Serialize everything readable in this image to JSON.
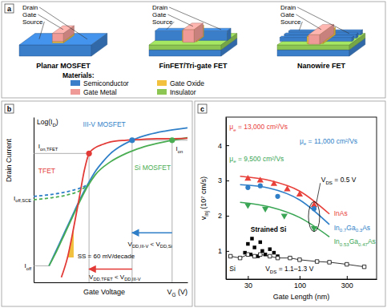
{
  "diagram": {
    "panel_label": "a",
    "devices": [
      {
        "title": "Planar MOSFET",
        "labels": [
          "Drain",
          "Gate",
          "Source"
        ]
      },
      {
        "title": "FinFET/Tri-gate FET",
        "labels": [
          "Drain",
          "Gate",
          "Source"
        ]
      },
      {
        "title": "Nanowire FET",
        "labels": [
          "Drain",
          "Gate",
          "Source"
        ]
      }
    ],
    "materials_title": "Materials:",
    "materials": [
      {
        "name": "Semiconductor",
        "color": "#3a7dc9"
      },
      {
        "name": "Gate Metal",
        "color": "#ef9a96"
      },
      {
        "name": "Gate Oxide",
        "color": "#f2c13d"
      },
      {
        "name": "Insulator",
        "color": "#8dc653"
      }
    ]
  },
  "chart_data": [
    {
      "type": "line",
      "panel_label": "b",
      "x_label": "Gate Voltage",
      "x_unit_label": [
        "V",
        "G",
        " (V)"
      ],
      "y_label": "Drain Current",
      "y_unit_label": [
        "Log(I",
        "D",
        ")"
      ],
      "xlim": [
        0,
        10
      ],
      "ylim": [
        0,
        10
      ],
      "tick_labels": false,
      "series": [
        {
          "label": "III-V MOSFET",
          "color": "#2f7fc8",
          "x": [
            1.0,
            1.5,
            2.0,
            2.5,
            3.0,
            3.5,
            4.0,
            4.5,
            5.0,
            5.5,
            6.4,
            7.5,
            8.5,
            10.0
          ],
          "values": [
            1.0,
            2.0,
            3.0,
            4.0,
            5.0,
            5.9,
            6.7,
            7.3,
            7.8,
            8.15,
            8.6,
            8.95,
            9.15,
            9.35
          ]
        },
        {
          "label": "Si MOSFET",
          "color": "#4aad52",
          "x": [
            1.0,
            1.5,
            2.0,
            2.5,
            3.0,
            3.5,
            4.0,
            5.0,
            6.0,
            7.0,
            8.0,
            9.0,
            10.0
          ],
          "values": [
            1.0,
            1.9,
            2.9,
            3.9,
            4.9,
            5.8,
            6.5,
            7.3,
            7.8,
            8.15,
            8.4,
            8.6,
            8.75
          ]
        },
        {
          "label": "TFET",
          "color": "#e23a36",
          "x": [
            1.8,
            2.2,
            2.6,
            3.0,
            3.3,
            3.6,
            4.0,
            4.5,
            5.0,
            6.0,
            7.0,
            8.0,
            9.0,
            10.0
          ],
          "values": [
            0.3,
            1.5,
            3.3,
            5.3,
            6.8,
            7.8,
            8.15,
            8.35,
            8.5,
            8.6,
            8.65,
            8.7,
            8.7,
            8.72
          ]
        },
        {
          "color": "#2f7fc8",
          "line_style": "dashed",
          "x": [
            0,
            1,
            2,
            3,
            3.5
          ],
          "values": [
            5.2,
            5.3,
            5.45,
            5.7,
            5.9
          ]
        },
        {
          "color": "#4aad52",
          "line_style": "dashed",
          "x": [
            0,
            1,
            2,
            3,
            3.6
          ],
          "values": [
            5.0,
            5.1,
            5.25,
            5.55,
            5.95
          ]
        }
      ],
      "markers": [
        {
          "x": 6.4,
          "y": 8.6,
          "color": "#2f7fc8"
        },
        {
          "x": 9.0,
          "y": 8.6,
          "color": "#4aad52"
        },
        {
          "x": 3.6,
          "y": 7.8,
          "color": "#e23a36"
        }
      ],
      "annotations": [
        [
          "I",
          "on,TFET"
        ],
        [
          "I",
          "off,SCE"
        ],
        [
          "I",
          "off"
        ],
        [
          "I",
          "on"
        ],
        [
          "SS = 60 mV/decade"
        ],
        [
          "V",
          "DD,III-V",
          " < V",
          "DD,Si"
        ],
        [
          "V",
          "DD,TFET",
          " < V",
          "DD,III-V"
        ]
      ]
    },
    {
      "type": "scatter",
      "panel_label": "c",
      "x_label": "Gate Length (nm)",
      "y_label": [
        "v",
        "inj",
        " (10⁷ cm/s)"
      ],
      "log": "x",
      "xlim": [
        18,
        600
      ],
      "xticks": [
        30,
        100,
        300
      ],
      "ylim": [
        0.2,
        4.8
      ],
      "yticks": [
        1,
        2,
        3,
        4
      ],
      "series": [
        {
          "label": "InAs",
          "type": "scatter",
          "marker": "triangle-up",
          "color": "#e8403a",
          "x": [
            30,
            40,
            55,
            75,
            100,
            140
          ],
          "values": [
            3.05,
            3.0,
            2.9,
            2.75,
            2.6,
            2.3
          ]
        },
        {
          "type": "line",
          "color": "#e8403a",
          "x": [
            25,
            50,
            100,
            200
          ],
          "values": [
            3.12,
            3.0,
            2.7,
            2.05
          ]
        },
        {
          "label": [
            "In",
            "0.7",
            "Ga",
            "0.3",
            "As"
          ],
          "type": "scatter",
          "marker": "circle",
          "color": "#2f7fc8",
          "x": [
            30,
            40,
            60,
            140
          ],
          "values": [
            2.8,
            2.85,
            2.55,
            2.2
          ]
        },
        {
          "type": "line",
          "color": "#2f7fc8",
          "x": [
            25,
            50,
            100,
            200
          ],
          "values": [
            2.88,
            2.78,
            2.45,
            1.75
          ]
        },
        {
          "label": [
            "In",
            "0.53",
            "Ga",
            "0.47",
            "As"
          ],
          "type": "scatter",
          "marker": "triangle-down",
          "color": "#3aa655",
          "x": [
            30,
            45,
            70,
            140
          ],
          "values": [
            2.3,
            2.2,
            2.0,
            1.65
          ]
        },
        {
          "type": "line",
          "color": "#3aa655",
          "x": [
            25,
            50,
            100,
            200
          ],
          "values": [
            2.38,
            2.25,
            1.95,
            1.4
          ]
        },
        {
          "label": "Strained Si",
          "type": "scatter",
          "marker": "square",
          "color": "#000000",
          "x": [
            28,
            30,
            32,
            33,
            35,
            38,
            40,
            42,
            45,
            50,
            55,
            60
          ],
          "values": [
            0.95,
            1.2,
            0.9,
            1.35,
            1.1,
            0.85,
            1.25,
            1.0,
            0.9,
            1.05,
            0.95,
            0.85
          ]
        },
        {
          "label": "Si",
          "type": "line",
          "marker": "square-open",
          "color": "#000000",
          "x": [
            20,
            25,
            30,
            35,
            40,
            50,
            60,
            80,
            100,
            150,
            200,
            300,
            450
          ],
          "values": [
            0.85,
            0.8,
            0.9,
            0.85,
            0.9,
            0.85,
            0.8,
            0.8,
            0.75,
            0.7,
            0.68,
            0.62,
            0.55
          ]
        }
      ],
      "annotations": [
        {
          "text": [
            "μ",
            "e",
            " = 13,000 cm²/Vs"
          ],
          "color": "#e8403a"
        },
        {
          "text": [
            "μ",
            "e",
            " = 11,000 cm²/Vs"
          ],
          "color": "#2f7fc8"
        },
        {
          "text": [
            "μ",
            "e",
            " = 9,500 cm²/Vs"
          ],
          "color": "#3aa655"
        },
        {
          "text": [
            "V",
            "DS",
            " = 0.5 V"
          ],
          "color": "#000000"
        },
        {
          "text": [
            "V",
            "DS",
            " = 1.1–1.3 V"
          ],
          "color": "#000000"
        }
      ]
    }
  ]
}
